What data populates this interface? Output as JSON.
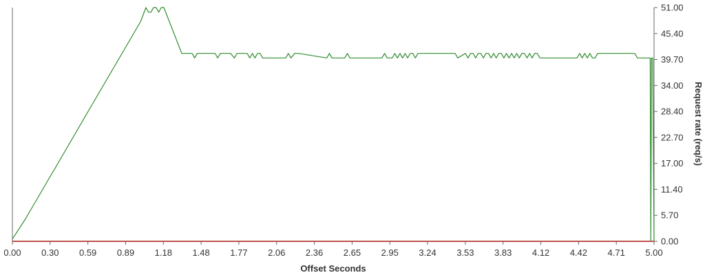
{
  "chart_data": {
    "type": "line",
    "xlabel": "Offset Seconds",
    "ylabel": "Request rate (req/s)",
    "xlim": [
      0,
      5
    ],
    "ylim": [
      0,
      51
    ],
    "x_ticks": [
      "0.00",
      "0.30",
      "0.59",
      "0.89",
      "1.18",
      "1.48",
      "1.77",
      "2.06",
      "2.36",
      "2.65",
      "2.95",
      "3.24",
      "3.53",
      "3.83",
      "4.12",
      "4.42",
      "4.71",
      "5.00"
    ],
    "y_ticks": [
      "0.00",
      "5.70",
      "11.40",
      "17.00",
      "22.70",
      "28.40",
      "34.00",
      "39.70",
      "45.40",
      "51.00"
    ],
    "y_axis_side": "right",
    "grid": false,
    "legend": "none",
    "colors": {
      "series_green": "#2e8b2e",
      "series_red": "#c0504d",
      "axis": "#666666"
    },
    "series": [
      {
        "color": "#2e8b2e",
        "x": [
          0,
          0.1,
          0.2,
          0.3,
          0.4,
          0.5,
          0.6,
          0.7,
          0.8,
          0.9,
          1.0,
          1.02,
          1.04,
          1.06,
          1.08,
          1.1,
          1.12,
          1.14,
          1.16,
          1.18,
          1.25,
          1.32,
          1.36,
          1.4,
          1.42,
          1.44,
          1.5,
          1.58,
          1.6,
          1.62,
          1.7,
          1.73,
          1.75,
          1.83,
          1.85,
          1.87,
          1.89,
          1.91,
          1.93,
          1.95,
          2.03,
          2.13,
          2.15,
          2.17,
          2.2,
          2.23,
          2.45,
          2.47,
          2.49,
          2.51,
          2.59,
          2.61,
          2.63,
          2.88,
          2.9,
          2.92,
          2.94,
          2.96,
          2.98,
          3.0,
          3.02,
          3.04,
          3.06,
          3.08,
          3.1,
          3.12,
          3.14,
          3.16,
          3.18,
          3.2,
          3.45,
          3.47,
          3.53,
          3.55,
          3.57,
          3.59,
          3.61,
          3.63,
          3.65,
          3.67,
          3.69,
          3.71,
          3.73,
          3.75,
          3.77,
          3.79,
          3.81,
          3.83,
          3.85,
          3.87,
          3.89,
          3.91,
          3.93,
          3.95,
          3.97,
          3.99,
          4.01,
          4.03,
          4.05,
          4.07,
          4.09,
          4.11,
          4.4,
          4.42,
          4.44,
          4.46,
          4.48,
          4.5,
          4.52,
          4.54,
          4.56,
          4.58,
          4.6,
          4.62,
          4.64,
          4.66,
          4.68,
          4.7,
          4.85,
          4.87,
          4.89,
          4.91,
          4.93,
          4.97,
          4.975,
          4.98,
          4.99,
          5.0
        ],
        "y": [
          0.5,
          4.8,
          9.6,
          14.4,
          19.2,
          24.0,
          28.8,
          33.6,
          38.4,
          43.2,
          48.0,
          49.5,
          51.0,
          50.0,
          50.0,
          51.0,
          51.0,
          50.0,
          51.0,
          51.0,
          46.0,
          41.0,
          41.0,
          41.0,
          40.0,
          41.0,
          41.0,
          41.0,
          40.0,
          41.0,
          41.0,
          40.0,
          41.0,
          41.0,
          40.0,
          41.0,
          40.0,
          41.0,
          41.0,
          40.0,
          40.0,
          40.0,
          41.0,
          40.0,
          41.0,
          41.0,
          40.0,
          41.0,
          40.0,
          40.0,
          40.0,
          41.0,
          40.0,
          40.0,
          41.0,
          40.0,
          40.0,
          40.0,
          41.0,
          40.0,
          41.0,
          40.0,
          41.0,
          40.0,
          41.0,
          41.0,
          40.0,
          41.0,
          41.0,
          41.0,
          41.0,
          40.0,
          41.0,
          40.0,
          41.0,
          41.0,
          40.0,
          41.0,
          41.0,
          40.0,
          41.0,
          41.0,
          40.0,
          41.0,
          40.0,
          41.0,
          41.0,
          40.0,
          41.0,
          40.0,
          41.0,
          40.0,
          41.0,
          40.0,
          41.0,
          41.0,
          40.0,
          41.0,
          40.0,
          41.0,
          41.0,
          40.0,
          40.0,
          41.0,
          40.0,
          41.0,
          40.0,
          41.0,
          40.0,
          40.0,
          41.0,
          41.0,
          41.0,
          41.0,
          41.0,
          41.0,
          41.0,
          41.0,
          41.0,
          40.0,
          40.0,
          40.0,
          40.0,
          40.0,
          0.0,
          40.0,
          40.0,
          0.0
        ]
      },
      {
        "color": "#c0504d",
        "x": [
          0,
          5.0
        ],
        "y": [
          0,
          0
        ]
      }
    ]
  }
}
